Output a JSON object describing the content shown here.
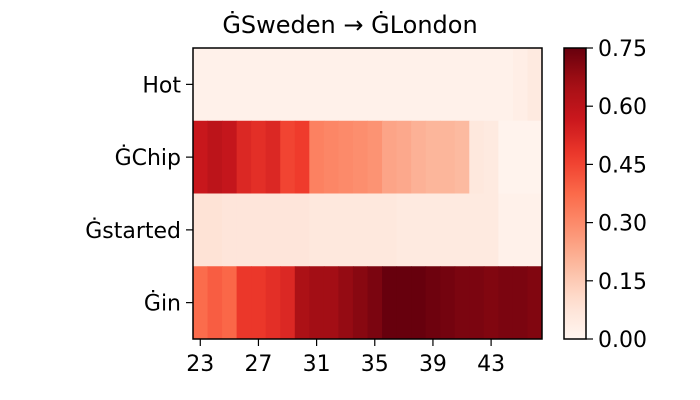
{
  "chart_data": {
    "type": "heatmap",
    "title": "ĠSweden → ĠLondon",
    "xlabel": "",
    "ylabel": "",
    "rows": [
      "Hot",
      "ĠChip",
      "Ġstarted",
      "Ġin"
    ],
    "x_start": 23,
    "x_ticks": [
      "23",
      "27",
      "31",
      "35",
      "39",
      "43"
    ],
    "x_tick_values": [
      23,
      27,
      31,
      35,
      39,
      43
    ],
    "values": [
      [
        0.02,
        0.02,
        0.02,
        0.02,
        0.02,
        0.02,
        0.02,
        0.02,
        0.02,
        0.02,
        0.02,
        0.02,
        0.02,
        0.02,
        0.02,
        0.02,
        0.02,
        0.02,
        0.02,
        0.02,
        0.02,
        0.02,
        0.03,
        0.05
      ],
      [
        0.57,
        0.6,
        0.58,
        0.52,
        0.5,
        0.52,
        0.45,
        0.47,
        0.32,
        0.31,
        0.3,
        0.29,
        0.28,
        0.24,
        0.23,
        0.21,
        0.2,
        0.2,
        0.19,
        0.06,
        0.05,
        0.01,
        0.01,
        0.01
      ],
      [
        0.08,
        0.08,
        0.07,
        0.07,
        0.07,
        0.07,
        0.07,
        0.07,
        0.06,
        0.06,
        0.06,
        0.06,
        0.06,
        0.06,
        0.05,
        0.05,
        0.05,
        0.05,
        0.05,
        0.05,
        0.05,
        0.02,
        0.02,
        0.02
      ],
      [
        0.37,
        0.4,
        0.38,
        0.48,
        0.48,
        0.5,
        0.52,
        0.64,
        0.66,
        0.66,
        0.68,
        0.7,
        0.72,
        0.76,
        0.76,
        0.75,
        0.74,
        0.73,
        0.72,
        0.72,
        0.71,
        0.72,
        0.72,
        0.71
      ]
    ],
    "colormap": "Reds",
    "colorbar": {
      "min": 0.0,
      "max": 0.75,
      "ticks": [
        "0.00",
        "0.15",
        "0.30",
        "0.45",
        "0.60",
        "0.75"
      ],
      "tick_values": [
        0.0,
        0.15,
        0.3,
        0.45,
        0.6,
        0.75
      ]
    },
    "grid": false,
    "legend": "none"
  }
}
